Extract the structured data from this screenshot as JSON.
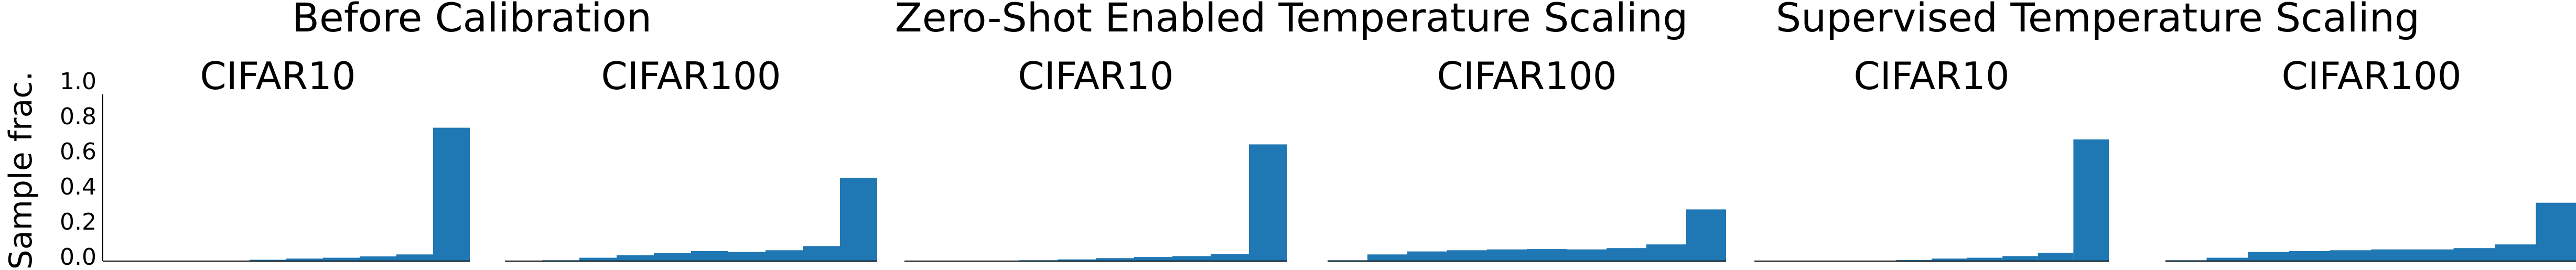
{
  "figure": {
    "ylabel": "Sample frac.",
    "y_ticks": [
      "1.0",
      "0.8",
      "0.6",
      "0.4",
      "0.2",
      "0.0"
    ],
    "bar_color": "#1f77b4"
  },
  "groups": [
    {
      "title": "Before Calibration"
    },
    {
      "title": "Zero-Shot Enabled Temperature Scaling"
    },
    {
      "title": "Supervised Temperature Scaling"
    }
  ],
  "chart_data": [
    {
      "type": "bar",
      "group": 0,
      "title": "CIFAR10",
      "ylabel": "Sample frac.",
      "ylim": [
        0,
        1
      ],
      "grid": false,
      "values": [
        0.0,
        0.0,
        0.0,
        0.002,
        0.008,
        0.015,
        0.02,
        0.028,
        0.04,
        0.8
      ]
    },
    {
      "type": "bar",
      "group": 0,
      "title": "CIFAR100",
      "ylim": [
        0,
        1
      ],
      "grid": false,
      "values": [
        0.0,
        0.005,
        0.02,
        0.035,
        0.048,
        0.06,
        0.055,
        0.065,
        0.09,
        0.5
      ]
    },
    {
      "type": "bar",
      "group": 1,
      "title": "CIFAR10",
      "ylim": [
        0,
        1
      ],
      "grid": false,
      "values": [
        0.0,
        0.0,
        0.002,
        0.005,
        0.01,
        0.018,
        0.025,
        0.03,
        0.042,
        0.7
      ]
    },
    {
      "type": "bar",
      "group": 1,
      "title": "CIFAR100",
      "ylim": [
        0,
        1
      ],
      "grid": false,
      "values": [
        0.005,
        0.04,
        0.058,
        0.065,
        0.07,
        0.072,
        0.07,
        0.078,
        0.1,
        0.31
      ]
    },
    {
      "type": "bar",
      "group": 2,
      "title": "CIFAR10",
      "ylim": [
        0,
        1
      ],
      "grid": false,
      "values": [
        0.0,
        0.0,
        0.0,
        0.002,
        0.006,
        0.015,
        0.02,
        0.03,
        0.05,
        0.73
      ]
    },
    {
      "type": "bar",
      "group": 2,
      "title": "CIFAR100",
      "ylim": [
        0,
        1
      ],
      "grid": false,
      "values": [
        0.005,
        0.02,
        0.055,
        0.06,
        0.065,
        0.07,
        0.07,
        0.078,
        0.1,
        0.35
      ]
    }
  ]
}
